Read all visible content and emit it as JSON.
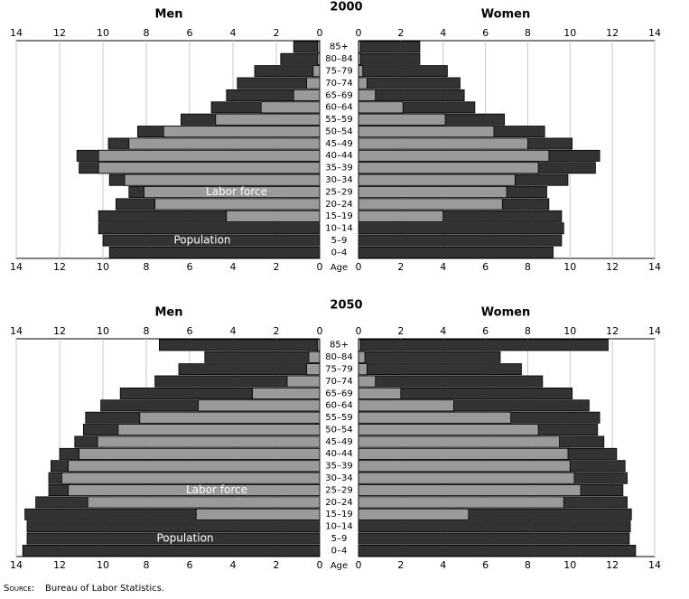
{
  "chart_data": [
    {
      "type": "pyramid",
      "title": "2000",
      "left_title": "Men",
      "right_title": "Women",
      "age_label": "Age",
      "categories": [
        "0–4",
        "5–9",
        "10–14",
        "15–19",
        "20–24",
        "25–29",
        "30–34",
        "35–39",
        "40–44",
        "45–49",
        "50–54",
        "55–59",
        "60–64",
        "65–69",
        "70–74",
        "75–79",
        "80–84",
        "85+"
      ],
      "xlim": [
        0,
        14
      ],
      "xticks": [
        0,
        2,
        4,
        6,
        8,
        10,
        12,
        14
      ],
      "grid": true,
      "series": [
        {
          "name": "Population",
          "color": "#333333",
          "men": [
            9.7,
            10.0,
            10.2,
            10.2,
            9.4,
            8.8,
            9.7,
            11.1,
            11.2,
            9.75,
            8.4,
            6.4,
            5.0,
            4.3,
            3.8,
            3.0,
            1.8,
            1.2
          ],
          "women": [
            9.2,
            9.6,
            9.7,
            9.6,
            9.0,
            8.9,
            9.9,
            11.2,
            11.4,
            10.1,
            8.8,
            6.9,
            5.5,
            5.0,
            4.8,
            4.2,
            2.9,
            2.9
          ]
        },
        {
          "name": "Labor force",
          "color": "#9a9a9a",
          "men": [
            0,
            0,
            0,
            4.3,
            7.6,
            8.1,
            9.0,
            10.2,
            10.2,
            8.8,
            7.2,
            4.8,
            2.7,
            1.2,
            0.6,
            0.3,
            0.1,
            0.1
          ],
          "women": [
            0,
            0,
            0,
            4.0,
            6.8,
            7.0,
            7.4,
            8.5,
            9.0,
            8.0,
            6.4,
            4.1,
            2.1,
            0.8,
            0.4,
            0.2,
            0.1,
            0.1
          ]
        }
      ]
    },
    {
      "type": "pyramid",
      "title": "2050",
      "left_title": "Men",
      "right_title": "Women",
      "age_label": "Age",
      "categories": [
        "0–4",
        "5–9",
        "10–14",
        "15–19",
        "20–24",
        "25–29",
        "30–34",
        "35–39",
        "40–44",
        "45–49",
        "50–54",
        "55–59",
        "60–64",
        "65–69",
        "70–74",
        "75–79",
        "80–84",
        "85+"
      ],
      "xlim": [
        0,
        14
      ],
      "xticks": [
        0,
        2,
        4,
        6,
        8,
        10,
        12,
        14
      ],
      "grid": true,
      "series": [
        {
          "name": "Population",
          "color": "#333333",
          "men": [
            13.7,
            13.5,
            13.5,
            13.6,
            13.1,
            12.5,
            12.5,
            12.4,
            12.0,
            11.3,
            10.9,
            10.8,
            10.1,
            9.2,
            7.6,
            6.5,
            5.3,
            7.4
          ],
          "women": [
            13.1,
            12.8,
            12.85,
            12.9,
            12.7,
            12.5,
            12.7,
            12.6,
            12.2,
            11.6,
            11.3,
            11.4,
            10.9,
            10.1,
            8.7,
            7.7,
            6.7,
            11.8
          ]
        },
        {
          "name": "Labor force",
          "color": "#9a9a9a",
          "men": [
            0,
            0,
            0,
            5.7,
            10.7,
            11.6,
            11.9,
            11.6,
            11.1,
            10.25,
            9.3,
            8.3,
            5.6,
            3.1,
            1.5,
            0.6,
            0.5,
            0.1
          ],
          "women": [
            0,
            0,
            0,
            5.2,
            9.7,
            10.5,
            10.2,
            10.0,
            9.9,
            9.5,
            8.5,
            7.2,
            4.5,
            2.0,
            0.8,
            0.4,
            0.3,
            0.1
          ]
        }
      ]
    }
  ],
  "source": {
    "label": "Source:",
    "text": "Bureau of Labor Statistics."
  }
}
